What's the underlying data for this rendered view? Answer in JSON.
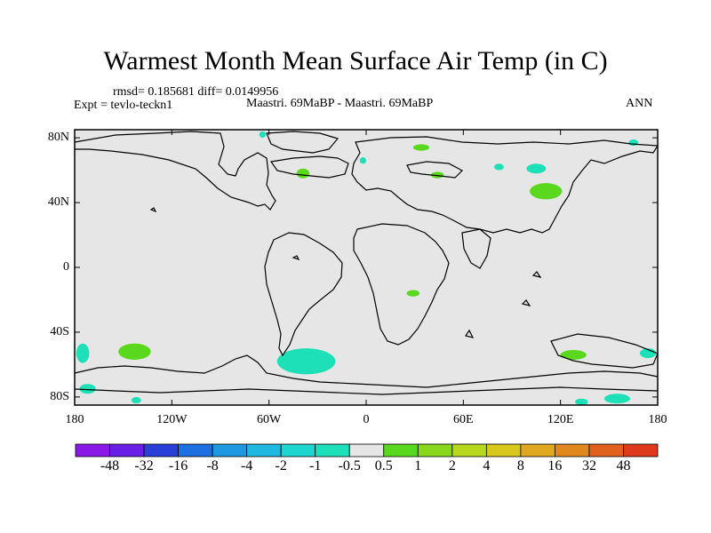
{
  "title": "Warmest Month Mean Surface Air Temp (in C)",
  "stats": "rmsd= 0.185681 diff= 0.0149956",
  "expt": "Expt = tevlo-teckn1",
  "subtitle": "Maastri.  69MaBP - Maastri.  69MaBP",
  "period": "ANN",
  "y_axis_labels": [
    {
      "text": "80N",
      "lat": 80
    },
    {
      "text": "40N",
      "lat": 40
    },
    {
      "text": "0",
      "lat": 0
    },
    {
      "text": "40S",
      "lat": -40
    },
    {
      "text": "80S",
      "lat": -80
    }
  ],
  "x_axis_labels": [
    {
      "text": "180",
      "lon": -180
    },
    {
      "text": "120W",
      "lon": -120
    },
    {
      "text": "60W",
      "lon": -60
    },
    {
      "text": "0",
      "lon": 0
    },
    {
      "text": "60E",
      "lon": 60
    },
    {
      "text": "120E",
      "lon": 120
    },
    {
      "text": "180",
      "lon": 180
    }
  ],
  "colorbar": {
    "colors": [
      "#8a19e8",
      "#6a1fe6",
      "#2a3fd8",
      "#1e6fe0",
      "#1e98e0",
      "#1eb8e0",
      "#1ed6d0",
      "#1ee0b8",
      "#e6e6e6",
      "#5ad81e",
      "#8ad81e",
      "#b8d81e",
      "#d8c81e",
      "#e0a81e",
      "#e0881e",
      "#e0601e",
      "#e03a1e"
    ],
    "labels": [
      "-48",
      "-32",
      "-16",
      "-8",
      "-4",
      "-2",
      "-1",
      "-0.5",
      "0.5",
      "1",
      "2",
      "4",
      "8",
      "16",
      "32",
      "48"
    ]
  },
  "anomaly_patches": [
    {
      "color": "#5ad81e",
      "lon": -39,
      "lat": 58,
      "rx": 4,
      "ry": 3
    },
    {
      "color": "#5ad81e",
      "lon": 34,
      "lat": 74,
      "rx": 5,
      "ry": 2
    },
    {
      "color": "#5ad81e",
      "lon": 44,
      "lat": 57,
      "rx": 4,
      "ry": 2
    },
    {
      "color": "#5ad81e",
      "lon": 111,
      "lat": 47,
      "rx": 10,
      "ry": 5
    },
    {
      "color": "#5ad81e",
      "lon": 29,
      "lat": -16,
      "rx": 4,
      "ry": 2
    },
    {
      "color": "#5ad81e",
      "lon": -143,
      "lat": -52,
      "rx": 10,
      "ry": 5
    },
    {
      "color": "#5ad81e",
      "lon": 128,
      "lat": -54,
      "rx": 8,
      "ry": 3
    },
    {
      "color": "#1ee0b8",
      "lon": -37,
      "lat": -58,
      "rx": 18,
      "ry": 8
    },
    {
      "color": "#1ee0b8",
      "lon": 105,
      "lat": 61,
      "rx": 6,
      "ry": 3
    },
    {
      "color": "#1ee0b8",
      "lon": -175,
      "lat": -53,
      "rx": 4,
      "ry": 6
    },
    {
      "color": "#1ee0b8",
      "lon": -172,
      "lat": -75,
      "rx": 5,
      "ry": 3
    },
    {
      "color": "#1ee0b8",
      "lon": 174,
      "lat": -53,
      "rx": 5,
      "ry": 3
    },
    {
      "color": "#1ee0b8",
      "lon": 155,
      "lat": -81,
      "rx": 8,
      "ry": 3
    },
    {
      "color": "#1ee0b8",
      "lon": -142,
      "lat": -82,
      "rx": 3,
      "ry": 2
    },
    {
      "color": "#1ee0b8",
      "lon": -64,
      "lat": 82,
      "rx": 2,
      "ry": 2
    },
    {
      "color": "#1ee0b8",
      "lon": -2,
      "lat": 66,
      "rx": 2,
      "ry": 2
    },
    {
      "color": "#1ee0b8",
      "lon": 82,
      "lat": 62,
      "rx": 3,
      "ry": 2
    },
    {
      "color": "#1ee0b8",
      "lon": 165,
      "lat": 77,
      "rx": 3,
      "ry": 2
    },
    {
      "color": "#1ee0b8",
      "lon": 133,
      "lat": -83,
      "rx": 4,
      "ry": 2
    }
  ]
}
